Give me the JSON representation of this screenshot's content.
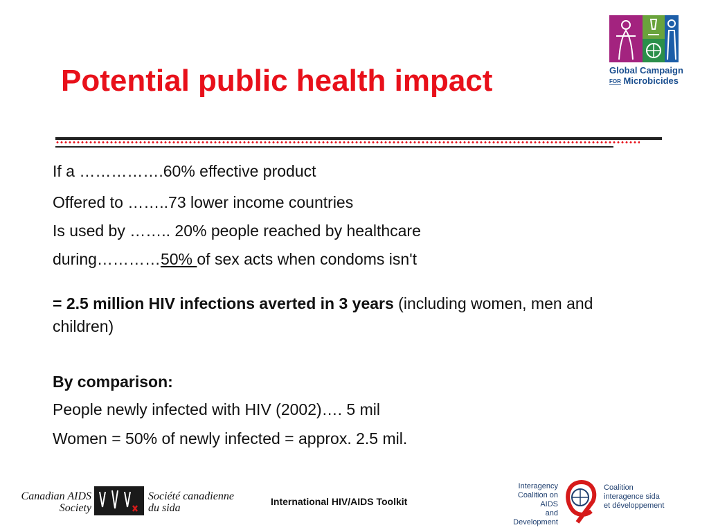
{
  "slide": {
    "title": "Potential public health impact",
    "lines": [
      "If a …………….60% effective product",
      "Offered to ……..73 lower income countries",
      "Is used by …….. 20% people reached by healthcare"
    ],
    "line4_prefix": "during…………",
    "line4_underlined": "50% ",
    "line4_suffix": "of sex acts when condoms isn't",
    "result_bold": "= 2.5 million HIV infections averted in 3 years",
    "result_rest": " (including women, men and children)",
    "comparison_heading": "By comparison:",
    "comparison_lines": [
      "People newly infected with HIV (2002)…. 5 mil",
      "Women = 50% of newly infected = approx. 2.5 mil."
    ]
  },
  "logos": {
    "gcm_line1": "Global Campaign",
    "gcm_for": "FOR",
    "gcm_line2": "Microbicides",
    "cas_en_1": "Canadian AIDS",
    "cas_en_2": "Society",
    "cas_fr_1": "Société canadienne",
    "cas_fr_2": "du sida",
    "icad_en_1": "Interagency",
    "icad_en_2": "Coalition on AIDS",
    "icad_en_3": "and Development",
    "icad_fr_1": "Coalition",
    "icad_fr_2": "interagence sida",
    "icad_fr_3": "et développement"
  },
  "footer": {
    "text": "International HIV/AIDS Toolkit"
  },
  "colors": {
    "title": "#e8101a",
    "logo_blue": "#1b4f8f",
    "logo_purple": "#a3237f",
    "logo_green": "#6aa33c"
  }
}
